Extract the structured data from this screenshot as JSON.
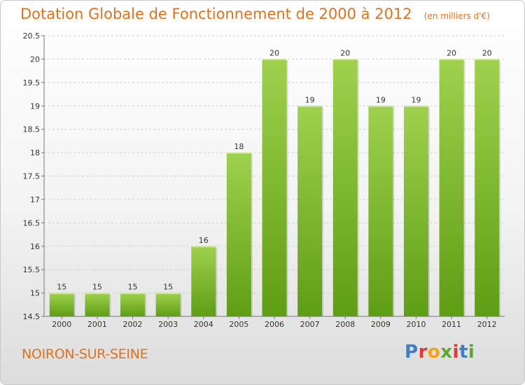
{
  "header": {
    "title": "Dotation Globale de Fonctionnement de 2000 à 2012",
    "unit": "(en milliers d'€)"
  },
  "commune": "NOIRON-SUR-SEINE",
  "logo": {
    "letters": [
      "P",
      "r",
      "o",
      "x",
      "i",
      "t",
      "i"
    ],
    "colors": [
      "#3f7ec4",
      "#e8372f",
      "#f4a11c",
      "#5aa832",
      "#e8372f",
      "#3f7ec4",
      "#5aa832"
    ]
  },
  "chart_data": {
    "type": "bar",
    "title": "Dotation Globale de Fonctionnement de 2000 à 2012",
    "categories": [
      "2000",
      "2001",
      "2002",
      "2003",
      "2004",
      "2005",
      "2006",
      "2007",
      "2008",
      "2009",
      "2010",
      "2011",
      "2012"
    ],
    "values": [
      15,
      15,
      15,
      15,
      16,
      18,
      20,
      19,
      20,
      19,
      19,
      20,
      20
    ],
    "ylim": [
      14.5,
      20.5
    ],
    "yticks": [
      "14.5",
      "15",
      "15.5",
      "16",
      "16.5",
      "17",
      "17.5",
      "18",
      "18.5",
      "19",
      "19.5",
      "20",
      "20.5"
    ],
    "grid": true,
    "bar_color_top": "#9fd14d",
    "bar_color_bottom": "#5e9e14"
  }
}
